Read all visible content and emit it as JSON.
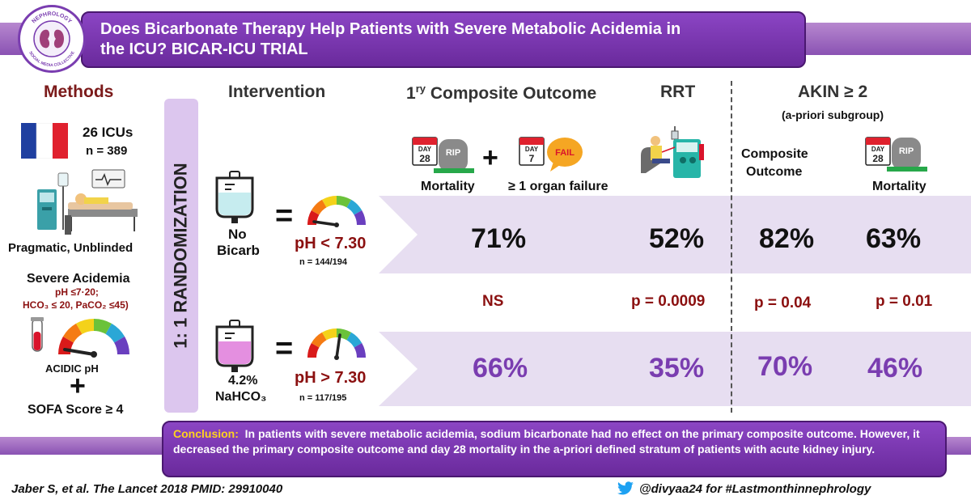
{
  "title": {
    "line1": "Does Bicarbonate Therapy Help Patients with Severe Metabolic Acidemia in",
    "line2": "the ICU? BICAR-ICU TRIAL"
  },
  "logo": {
    "top_text": "NEPHROLOGY",
    "bottom_text": "SOCIAL MEDIA COLLECTIVE"
  },
  "methods": {
    "header": "Methods",
    "icus": "26 ICUs",
    "n": "n = 389",
    "design": "Pragmatic, Unblinded",
    "criteria_title": "Severe Acidemia",
    "criteria_line1": "pH ≤7·20;",
    "criteria_line2": "HCO₃ ≤ 20, PaCO₂ ≤45)",
    "acidic": "ACIDIC pH",
    "plus": "+",
    "sofa": "SOFA Score ≥ 4"
  },
  "randomization": "1: 1 RANDOMIZATION",
  "intervention": {
    "header": "Intervention",
    "arm1": {
      "label_line1": "No",
      "label_line2": "Bicarb",
      "ph": "pH < 7.30",
      "n": "n = 144/194"
    },
    "arm2": {
      "label_line1": "4.2%",
      "label_line2": "NaHCO₃",
      "ph": "pH > 7.30",
      "n": "n = 117/195"
    },
    "equals": "="
  },
  "outcomes": {
    "composite_header_sup": "ry",
    "composite_header_pre": "1",
    "composite_header": "Composite Outcome",
    "rrt_header": "RRT",
    "akin_header": "AKIN ≥ 2",
    "akin_sub": "(a-priori subgroup)",
    "mortality_label": "Mortality",
    "organ_label": "≥ 1 organ failure",
    "plus": "+",
    "akin_composite_line1": "Composite",
    "akin_composite_line2": "Outcome",
    "akin_mortality": "Mortality",
    "icons": {
      "cal28_day": "DAY",
      "cal28_num": "28",
      "rip": "RIP",
      "cal7_day": "DAY",
      "cal7_num": "7",
      "fail": "FAIL"
    }
  },
  "results": {
    "no_bicarb": {
      "composite": "71%",
      "rrt": "52%",
      "akin_composite": "82%",
      "akin_mortality": "63%"
    },
    "pvalues": {
      "composite": "NS",
      "rrt": "p = 0.0009",
      "akin_composite": "p = 0.04",
      "akin_mortality": "p = 0.01"
    },
    "bicarb": {
      "composite": "66%",
      "rrt": "35%",
      "akin_composite": "70%",
      "akin_mortality": "46%"
    }
  },
  "conclusion": {
    "label": "Conclusion:",
    "text": "In patients with severe metabolic acidemia, sodium bicarbonate had no effect on the primary composite outcome. However, it decreased the primary composite outcome and day 28 mortality in the a-priori defined stratum of patients with acute kidney injury."
  },
  "footer": {
    "citation": "Jaber S, et al. The Lancet 2018 PMID: 29910040",
    "handle": "@divyaa24 for #Lastmonthinnephrology"
  },
  "colors": {
    "purple": "#7a3db0",
    "dark_red": "#8b1010",
    "band": "#e7def1",
    "highlight": "#ffd21f"
  }
}
